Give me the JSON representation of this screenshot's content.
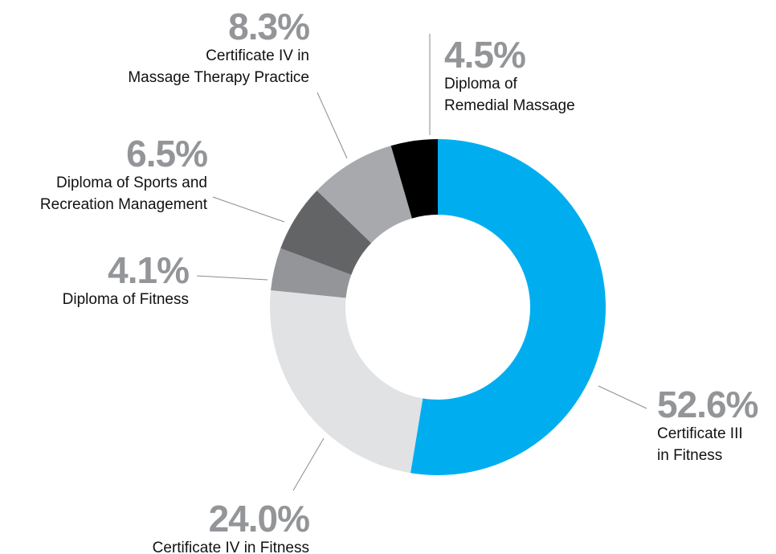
{
  "chart_data": {
    "type": "donut",
    "categories": [
      "Certificate III\nin Fitness",
      "Certificate IV in Fitness",
      "Diploma of Fitness",
      "Diploma of Sports and\nRecreation Management",
      "Certificate IV in\nMassage Therapy Practice",
      "Diploma of\nRemedial Massage"
    ],
    "values": [
      52.6,
      24.0,
      4.1,
      6.5,
      8.3,
      4.5
    ],
    "value_labels": [
      "52.6%",
      "24.0%",
      "4.1%",
      "6.5%",
      "8.3%",
      "4.5%"
    ],
    "colors": [
      "#00aeef",
      "#e1e2e4",
      "#939598",
      "#636466",
      "#a7a9ac",
      "#000000"
    ]
  }
}
